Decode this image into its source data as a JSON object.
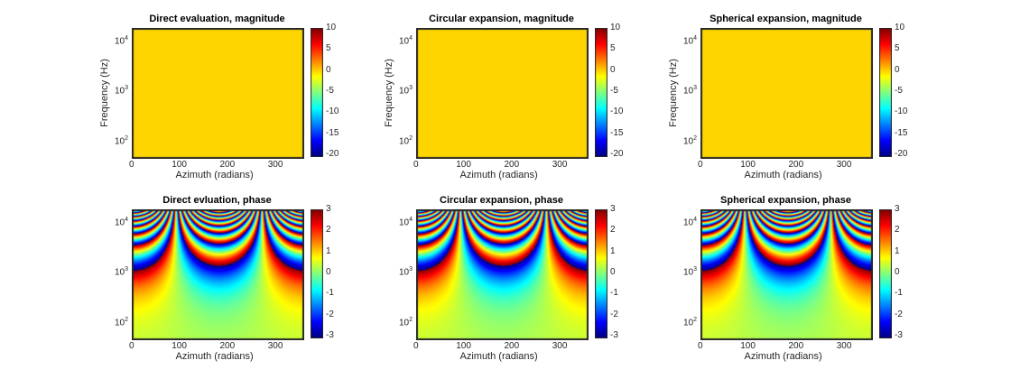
{
  "chart_data": [
    {
      "type": "heatmap",
      "title": "Direct evaluation, magnitude",
      "xlabel": "Azimuth (radians)",
      "ylabel": "Frequency (Hz)",
      "xlim": [
        0,
        355
      ],
      "ylim": [
        49,
        18600
      ],
      "yscale": "log",
      "xticks": [
        "0",
        "100",
        "200",
        "300"
      ],
      "yticks": [
        "10^2",
        "10^3",
        "10^4"
      ],
      "field": "magnitude",
      "constant_value": 0,
      "clim": [
        -20,
        10
      ],
      "colorbar_ticks": [
        "10",
        "5",
        "0",
        "-5",
        "-10",
        "-15",
        "-20"
      ],
      "colormap": "jet"
    },
    {
      "type": "heatmap",
      "title": "Circular expansion, magnitude",
      "xlabel": "Azimuth (radians)",
      "ylabel": "Frequency (Hz)",
      "xlim": [
        0,
        355
      ],
      "ylim": [
        49,
        18600
      ],
      "yscale": "log",
      "xticks": [
        "0",
        "100",
        "200",
        "300"
      ],
      "yticks": [
        "10^2",
        "10^3",
        "10^4"
      ],
      "field": "magnitude",
      "constant_value": 0,
      "clim": [
        -20,
        10
      ],
      "colorbar_ticks": [
        "10",
        "5",
        "0",
        "-5",
        "-10",
        "-15",
        "-20"
      ],
      "colormap": "jet"
    },
    {
      "type": "heatmap",
      "title": "Spherical expansion, magnitude",
      "xlabel": "Azimuth (radians)",
      "ylabel": "Frequency (Hz)",
      "xlim": [
        0,
        355
      ],
      "ylim": [
        49,
        18600
      ],
      "yscale": "log",
      "xticks": [
        "0",
        "100",
        "200",
        "300"
      ],
      "yticks": [
        "10^2",
        "10^3",
        "10^4"
      ],
      "field": "magnitude",
      "constant_value": 0,
      "clim": [
        -20,
        10
      ],
      "colorbar_ticks": [
        "10",
        "5",
        "0",
        "-5",
        "-10",
        "-15",
        "-20"
      ],
      "colormap": "jet"
    },
    {
      "type": "heatmap",
      "title": "Direct evluation, phase",
      "xlabel": "Azimuth (radians)",
      "ylabel": "",
      "xlim": [
        0,
        355
      ],
      "ylim": [
        49,
        18600
      ],
      "yscale": "log",
      "xticks": [
        "0",
        "100",
        "200",
        "300"
      ],
      "yticks": [
        "10^2",
        "10^3",
        "10^4"
      ],
      "field": "phase",
      "phase_wrap_frequency_hz": 1300,
      "clim": [
        -3.14,
        3.14
      ],
      "colorbar_ticks": [
        "3",
        "2",
        "1",
        "0",
        "-1",
        "-2",
        "-3"
      ],
      "colormap": "jet"
    },
    {
      "type": "heatmap",
      "title": "Circular expansion, phase",
      "xlabel": "Azimuth (radians)",
      "ylabel": "",
      "xlim": [
        0,
        355
      ],
      "ylim": [
        49,
        18600
      ],
      "yscale": "log",
      "xticks": [
        "0",
        "100",
        "200",
        "300"
      ],
      "yticks": [
        "10^2",
        "10^3",
        "10^4"
      ],
      "field": "phase",
      "phase_wrap_frequency_hz": 1300,
      "clim": [
        -3.14,
        3.14
      ],
      "colorbar_ticks": [
        "3",
        "2",
        "1",
        "0",
        "-1",
        "-2",
        "-3"
      ],
      "colormap": "jet"
    },
    {
      "type": "heatmap",
      "title": "Spherical expansion, phase",
      "xlabel": "Azimuth (radians)",
      "ylabel": "",
      "xlim": [
        0,
        355
      ],
      "ylim": [
        49,
        18600
      ],
      "yscale": "log",
      "xticks": [
        "0",
        "100",
        "200",
        "300"
      ],
      "yticks": [
        "10^2",
        "10^3",
        "10^4"
      ],
      "field": "phase",
      "phase_wrap_frequency_hz": 1300,
      "clim": [
        -3.14,
        3.14
      ],
      "colorbar_ticks": [
        "3",
        "2",
        "1",
        "0",
        "-1",
        "-2",
        "-3"
      ],
      "colormap": "jet"
    }
  ]
}
